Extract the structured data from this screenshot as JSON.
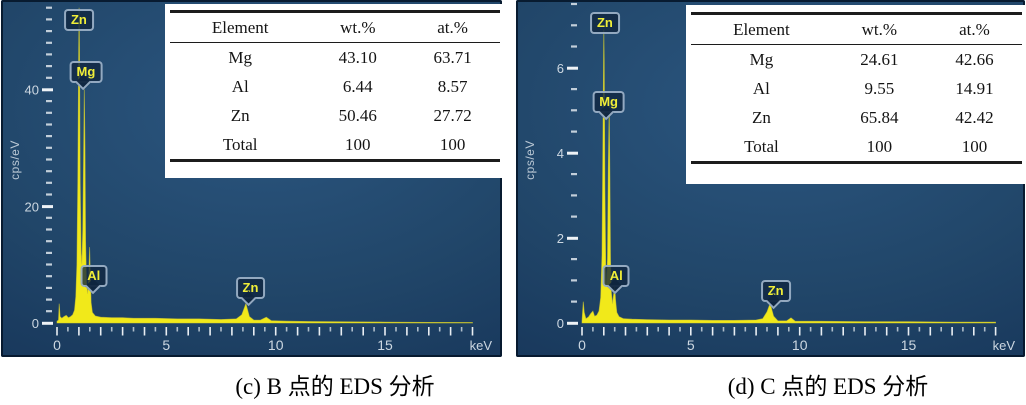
{
  "colors": {
    "spectrum_yellow": "#f8ee18",
    "plot_background": "#214669",
    "axis_text": "#ccd7e1",
    "peak_label_text": "#f0ee38"
  },
  "chart_data": [
    {
      "type": "area",
      "title": "(c) B 点的 EDS 分析",
      "xlabel": "keV",
      "ylabel": "cps/eV",
      "xlim": [
        0,
        19.8
      ],
      "ylim": [
        0,
        55
      ],
      "x_tick_labels": [
        "0",
        "5",
        "10",
        "15"
      ],
      "x_major_step": 1,
      "x_minor_step": 0.5,
      "y_tick_labels": [
        "0",
        "20",
        "40"
      ],
      "y_major_step": 20,
      "y_minor_step": 2,
      "grid": false,
      "series": [
        {
          "name": "EDS spectrum point B",
          "color": "#f8ee18",
          "points": [
            [
              0.0,
              0.3
            ],
            [
              0.07,
              0.5
            ],
            [
              0.1,
              3.3
            ],
            [
              0.14,
              1.1
            ],
            [
              0.22,
              0.8
            ],
            [
              0.32,
              1.1
            ],
            [
              0.42,
              1.3
            ],
            [
              0.52,
              0.9
            ],
            [
              0.62,
              1.1
            ],
            [
              0.72,
              1.4
            ],
            [
              0.8,
              2.2
            ],
            [
              0.86,
              4.5
            ],
            [
              0.91,
              10
            ],
            [
              0.95,
              24
            ],
            [
              0.99,
              47
            ],
            [
              1.01,
              54
            ],
            [
              1.03,
              47
            ],
            [
              1.06,
              24
            ],
            [
              1.1,
              12
            ],
            [
              1.14,
              10
            ],
            [
              1.18,
              16
            ],
            [
              1.22,
              30
            ],
            [
              1.25,
              40
            ],
            [
              1.28,
              30
            ],
            [
              1.31,
              14
            ],
            [
              1.35,
              7
            ],
            [
              1.4,
              5
            ],
            [
              1.45,
              7.5
            ],
            [
              1.49,
              13
            ],
            [
              1.52,
              9
            ],
            [
              1.56,
              3.5
            ],
            [
              1.62,
              1.8
            ],
            [
              1.75,
              1.2
            ],
            [
              2.0,
              1.0
            ],
            [
              2.5,
              0.9
            ],
            [
              3.0,
              0.9
            ],
            [
              3.5,
              0.8
            ],
            [
              4.5,
              0.8
            ],
            [
              5.5,
              0.7
            ],
            [
              6.5,
              0.7
            ],
            [
              7.5,
              0.6
            ],
            [
              8.2,
              0.7
            ],
            [
              8.45,
              1.4
            ],
            [
              8.64,
              3.3
            ],
            [
              8.8,
              1.1
            ],
            [
              9.0,
              0.5
            ],
            [
              9.3,
              0.5
            ],
            [
              9.57,
              1.0
            ],
            [
              9.8,
              0.4
            ],
            [
              10.5,
              0.3
            ],
            [
              11.5,
              0.25
            ],
            [
              13.0,
              0.2
            ],
            [
              15.0,
              0.15
            ],
            [
              17.0,
              0.1
            ],
            [
              19.0,
              0.08
            ]
          ]
        }
      ],
      "peak_labels": [
        {
          "text": "Zn",
          "kev": 1.0,
          "y": 52,
          "pointer": false
        },
        {
          "text": "Mg",
          "kev": 1.32,
          "y": 43,
          "pointer": true
        },
        {
          "text": "Al",
          "kev": 1.68,
          "y": 8,
          "pointer": true
        },
        {
          "text": "Zn",
          "kev": 8.85,
          "y": 6,
          "pointer": true
        }
      ],
      "table": {
        "headers": [
          "Element",
          "wt.%",
          "at.%"
        ],
        "rows": [
          [
            "Mg",
            "43.10",
            "63.71"
          ],
          [
            "Al",
            "6.44",
            "8.57"
          ],
          [
            "Zn",
            "50.46",
            "27.72"
          ],
          [
            "Total",
            "100",
            "100"
          ]
        ]
      }
    },
    {
      "type": "area",
      "title": "(d) C 点的 EDS 分析",
      "xlabel": "keV",
      "ylabel": "cps/eV",
      "xlim": [
        0,
        19.8
      ],
      "ylim": [
        0,
        7.55
      ],
      "x_tick_labels": [
        "0",
        "5",
        "10",
        "15"
      ],
      "x_major_step": 1,
      "x_minor_step": 0.5,
      "y_tick_labels": [
        "0",
        "2",
        "4",
        "6"
      ],
      "y_major_step": 2,
      "y_minor_step": 0.5,
      "grid": false,
      "series": [
        {
          "name": "EDS spectrum point C",
          "color": "#f8ee18",
          "points": [
            [
              0.0,
              0.04
            ],
            [
              0.06,
              0.5
            ],
            [
              0.1,
              0.25
            ],
            [
              0.18,
              0.1
            ],
            [
              0.3,
              0.14
            ],
            [
              0.4,
              0.22
            ],
            [
              0.5,
              0.28
            ],
            [
              0.58,
              0.16
            ],
            [
              0.68,
              0.18
            ],
            [
              0.78,
              0.28
            ],
            [
              0.86,
              0.6
            ],
            [
              0.92,
              1.6
            ],
            [
              0.97,
              4.8
            ],
            [
              1.0,
              6.9
            ],
            [
              1.02,
              6.2
            ],
            [
              1.05,
              3.2
            ],
            [
              1.09,
              1.4
            ],
            [
              1.13,
              0.9
            ],
            [
              1.17,
              1.5
            ],
            [
              1.21,
              3.6
            ],
            [
              1.25,
              5.1
            ],
            [
              1.28,
              3.4
            ],
            [
              1.31,
              1.5
            ],
            [
              1.35,
              0.7
            ],
            [
              1.4,
              0.45
            ],
            [
              1.46,
              0.7
            ],
            [
              1.5,
              0.92
            ],
            [
              1.54,
              0.55
            ],
            [
              1.6,
              0.25
            ],
            [
              1.7,
              0.15
            ],
            [
              1.9,
              0.1
            ],
            [
              2.3,
              0.09
            ],
            [
              3.0,
              0.08
            ],
            [
              4.0,
              0.07
            ],
            [
              5.0,
              0.07
            ],
            [
              6.0,
              0.06
            ],
            [
              7.0,
              0.06
            ],
            [
              8.0,
              0.07
            ],
            [
              8.3,
              0.1
            ],
            [
              8.5,
              0.26
            ],
            [
              8.64,
              0.46
            ],
            [
              8.8,
              0.16
            ],
            [
              9.0,
              0.05
            ],
            [
              9.4,
              0.05
            ],
            [
              9.6,
              0.12
            ],
            [
              9.8,
              0.04
            ],
            [
              11.0,
              0.04
            ],
            [
              13.0,
              0.03
            ],
            [
              15.0,
              0.03
            ],
            [
              17.0,
              0.02
            ],
            [
              19.0,
              0.02
            ]
          ]
        }
      ],
      "peak_labels": [
        {
          "text": "Zn",
          "kev": 1.05,
          "y": 7.05,
          "pointer": false
        },
        {
          "text": "Mg",
          "kev": 1.22,
          "y": 5.2,
          "pointer": true
        },
        {
          "text": "Al",
          "kev": 1.57,
          "y": 1.1,
          "pointer": true
        },
        {
          "text": "Zn",
          "kev": 8.9,
          "y": 0.75,
          "pointer": true
        }
      ],
      "table": {
        "headers": [
          "Element",
          "wt.%",
          "at.%"
        ],
        "rows": [
          [
            "Mg",
            "24.61",
            "42.66"
          ],
          [
            "Al",
            "9.55",
            "14.91"
          ],
          [
            "Zn",
            "65.84",
            "42.42"
          ],
          [
            "Total",
            "100",
            "100"
          ]
        ]
      }
    }
  ]
}
